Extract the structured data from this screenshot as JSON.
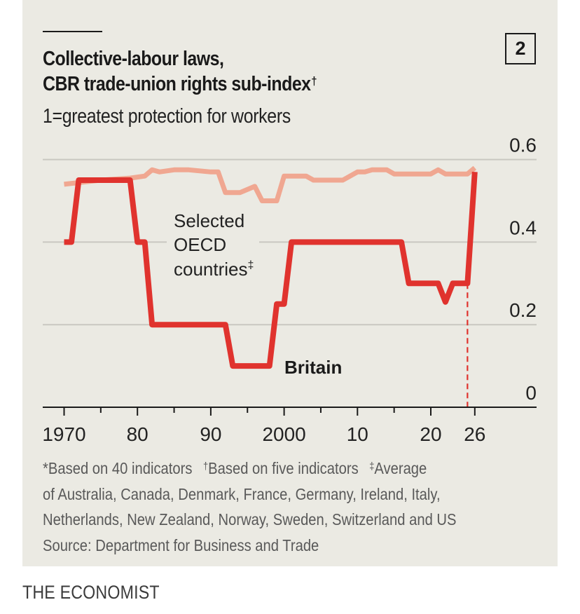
{
  "badge": "2",
  "title_line1": "Collective-labour laws,",
  "title_line2": "CBR trade-union rights sub-index",
  "title_marker": "†",
  "subtitle": "1=greatest protection for workers",
  "notes": {
    "n1_marker": "*",
    "n1": "Based on 40 indicators",
    "n2_marker": "†",
    "n2": "Based on five indicators",
    "n3_marker": "‡",
    "n3_a": "Average",
    "n3_b": "of Australia, Canada, Denmark, France, Germany, Ireland, Italy,",
    "n3_c": "Netherlands, New Zealand, Norway, Sweden, Switzerland and US",
    "source": "Source: Department for Business and Trade"
  },
  "brand": "THE ECONOMIST",
  "colors": {
    "background": "#ebeae3",
    "britain": "#e0332e",
    "oecd": "#f0a791",
    "grid": "#c9c8c1",
    "axis": "#1a1a1a"
  },
  "chart_data": {
    "type": "line",
    "title": "Collective-labour laws, CBR trade-union rights sub-index†",
    "subtitle": "1=greatest protection for workers",
    "xlabel": "",
    "ylabel": "",
    "xlim": [
      1970,
      2026
    ],
    "ylim": [
      0,
      0.6
    ],
    "y_ticks": [
      0,
      0.2,
      0.4,
      0.6
    ],
    "y_tick_labels": [
      "0",
      "0.2",
      "0.4",
      "0.6"
    ],
    "y_axis_position": "right",
    "x_ticks_major": [
      1970,
      1980,
      1990,
      2000,
      2010,
      2020,
      2026
    ],
    "x_tick_labels": [
      "1970",
      "80",
      "90",
      "2000",
      "10",
      "20",
      "26"
    ],
    "x_ticks_minor": [
      1975,
      1985,
      1995,
      2005,
      2015
    ],
    "grid": true,
    "legend": "inline labels",
    "annotations": [
      {
        "text": "Selected",
        "series": "Selected OECD countries‡"
      },
      {
        "text": "OECD",
        "series": "Selected OECD countries‡"
      },
      {
        "text": "countries",
        "marker": "‡",
        "series": "Selected OECD countries‡"
      },
      {
        "text": "Britain",
        "series": "Britain"
      }
    ],
    "reference_line": {
      "x": 2025,
      "style": "dashed",
      "color": "#e0332e",
      "from_y": 0,
      "to_y": 0.3
    },
    "series": [
      {
        "name": "Britain",
        "x": [
          1970,
          1971,
          1972,
          1979,
          1980,
          1981,
          1982,
          1992,
          1993,
          1998,
          1999,
          2000,
          2001,
          2016,
          2017,
          2021,
          2022,
          2023,
          2025,
          2026
        ],
        "values": [
          0.4,
          0.4,
          0.55,
          0.55,
          0.4,
          0.4,
          0.2,
          0.2,
          0.1,
          0.1,
          0.25,
          0.25,
          0.4,
          0.4,
          0.3,
          0.3,
          0.255,
          0.3,
          0.3,
          0.57
        ]
      },
      {
        "name": "Selected OECD countries‡",
        "x": [
          1970,
          1975,
          1979,
          1981,
          1982,
          1983,
          1985,
          1987,
          1990,
          1991,
          1992,
          1994,
          1996,
          1997,
          1999,
          2000,
          2003,
          2004,
          2008,
          2010,
          2011,
          2012,
          2014,
          2015,
          2020,
          2021,
          2022,
          2025,
          2026
        ],
        "values": [
          0.54,
          0.55,
          0.555,
          0.56,
          0.575,
          0.57,
          0.575,
          0.575,
          0.57,
          0.57,
          0.52,
          0.52,
          0.535,
          0.5,
          0.5,
          0.56,
          0.56,
          0.55,
          0.55,
          0.57,
          0.57,
          0.575,
          0.575,
          0.565,
          0.565,
          0.575,
          0.565,
          0.565,
          0.58
        ]
      }
    ]
  }
}
